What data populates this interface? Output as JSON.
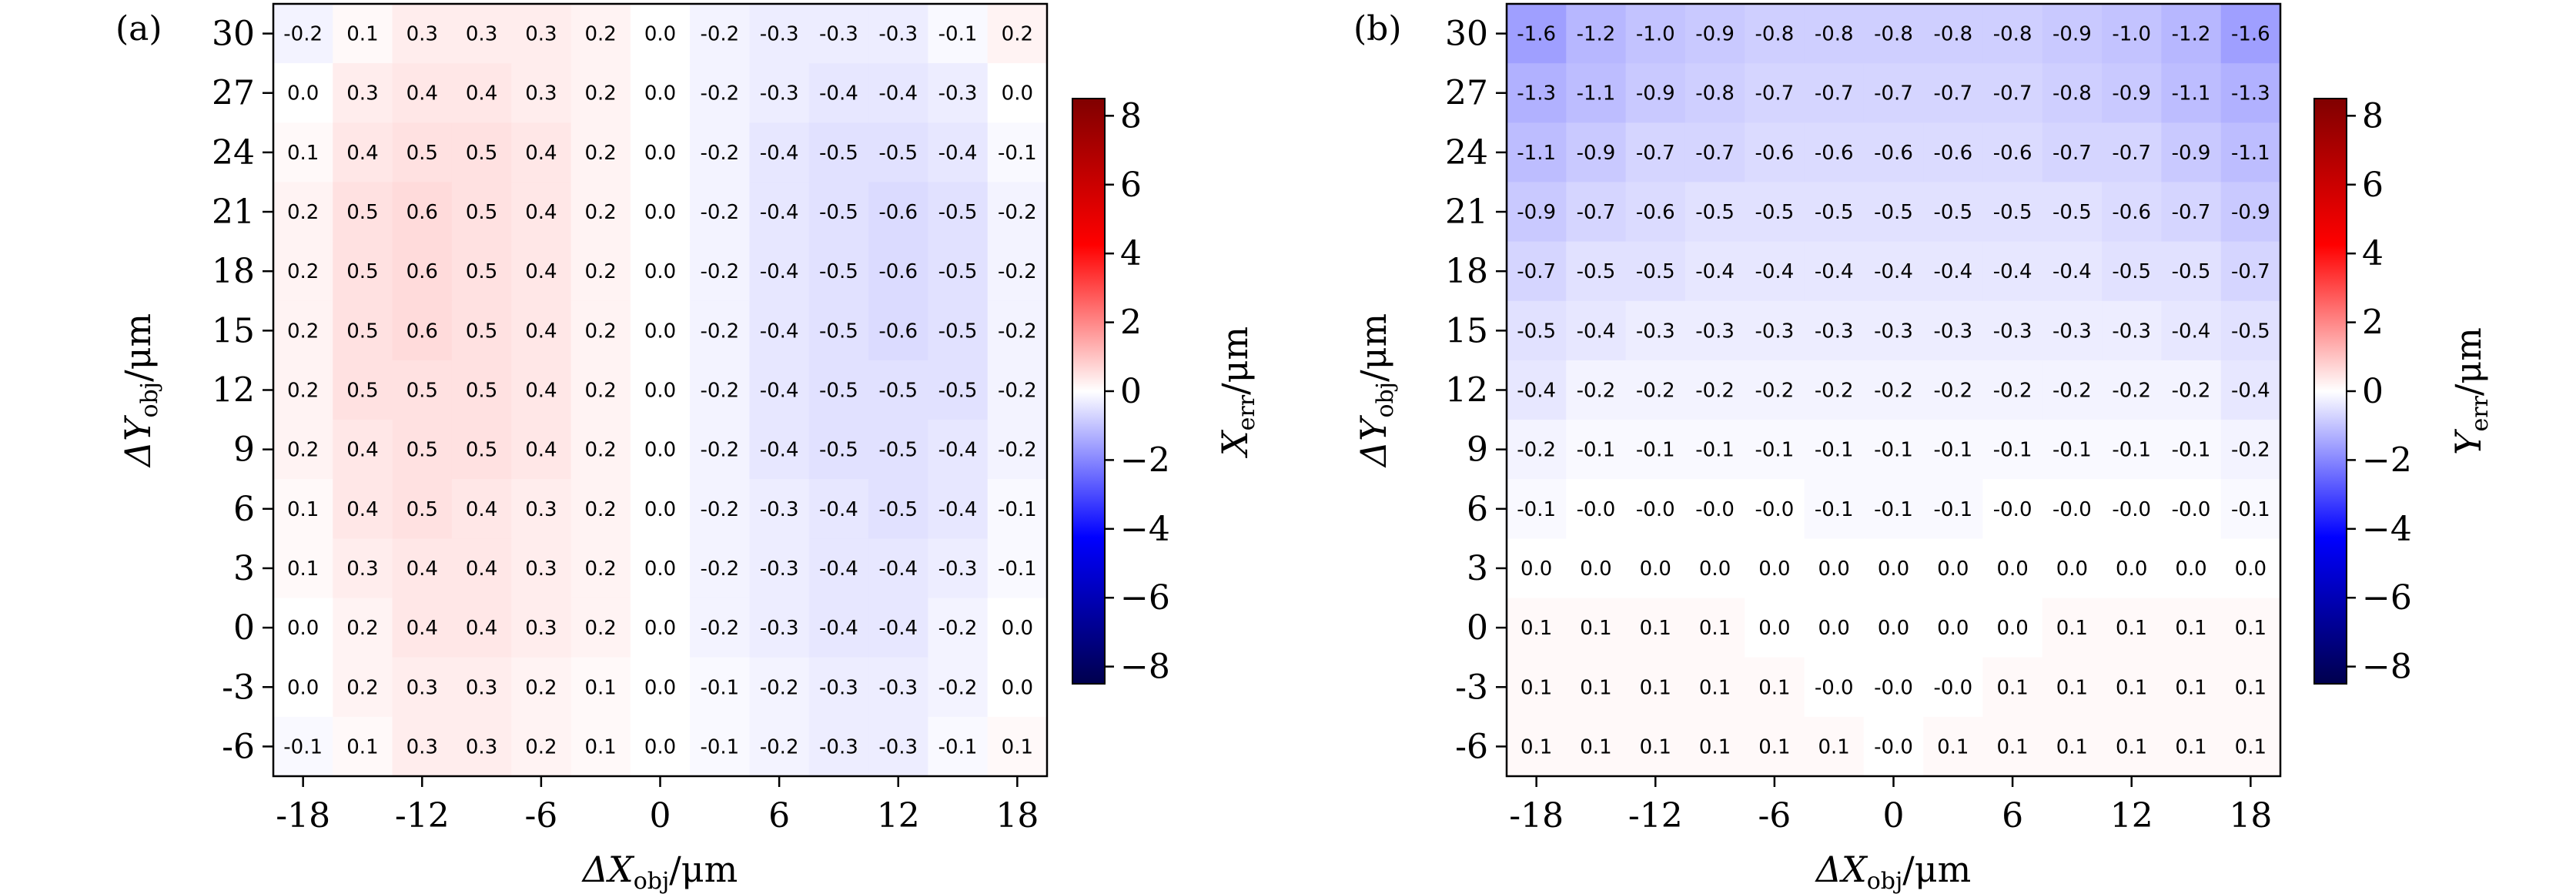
{
  "panels": [
    {
      "label": "(a)",
      "xlabel": "ΔX_obj/μm",
      "ylabel": "ΔY_obj/μm",
      "colorbar_label": "X_err/μm"
    },
    {
      "label": "(b)",
      "xlabel": "ΔX_obj/μm",
      "ylabel": "ΔY_obj/μm",
      "colorbar_label": "Y_err/μm"
    }
  ],
  "chart_data": [
    {
      "type": "heatmap",
      "title": "",
      "xlabel": "ΔX_obj/μm",
      "ylabel": "ΔY_obj/μm",
      "colorbar_label": "X_err/μm",
      "x": [
        -18,
        -15,
        -12,
        -9,
        -6,
        -3,
        0,
        3,
        6,
        9,
        12,
        15,
        18
      ],
      "y": [
        30,
        27,
        24,
        21,
        18,
        15,
        12,
        9,
        6,
        3,
        0,
        -3,
        -6
      ],
      "x_ticks": [
        -18,
        -12,
        -6,
        0,
        6,
        12,
        18
      ],
      "y_ticks": [
        30,
        27,
        24,
        21,
        18,
        15,
        12,
        9,
        6,
        3,
        0,
        -3,
        -6
      ],
      "xlim": [
        -19.5,
        19.5
      ],
      "ylim": [
        -7.5,
        31.5
      ],
      "colorbar_range": [
        -8.5,
        8.5
      ],
      "colorbar_ticks": [
        8,
        6,
        4,
        2,
        0,
        -2,
        -4,
        -6,
        -8
      ],
      "colormap": "seismic",
      "values": [
        [
          "-0.2",
          "0.1",
          "0.3",
          "0.3",
          "0.3",
          "0.2",
          "0.0",
          "-0.2",
          "-0.3",
          "-0.3",
          "-0.3",
          "-0.1",
          "0.2"
        ],
        [
          "0.0",
          "0.3",
          "0.4",
          "0.4",
          "0.3",
          "0.2",
          "0.0",
          "-0.2",
          "-0.3",
          "-0.4",
          "-0.4",
          "-0.3",
          "0.0"
        ],
        [
          "0.1",
          "0.4",
          "0.5",
          "0.5",
          "0.4",
          "0.2",
          "0.0",
          "-0.2",
          "-0.4",
          "-0.5",
          "-0.5",
          "-0.4",
          "-0.1"
        ],
        [
          "0.2",
          "0.5",
          "0.6",
          "0.5",
          "0.4",
          "0.2",
          "0.0",
          "-0.2",
          "-0.4",
          "-0.5",
          "-0.6",
          "-0.5",
          "-0.2"
        ],
        [
          "0.2",
          "0.5",
          "0.6",
          "0.5",
          "0.4",
          "0.2",
          "0.0",
          "-0.2",
          "-0.4",
          "-0.5",
          "-0.6",
          "-0.5",
          "-0.2"
        ],
        [
          "0.2",
          "0.5",
          "0.6",
          "0.5",
          "0.4",
          "0.2",
          "0.0",
          "-0.2",
          "-0.4",
          "-0.5",
          "-0.6",
          "-0.5",
          "-0.2"
        ],
        [
          "0.2",
          "0.5",
          "0.5",
          "0.5",
          "0.4",
          "0.2",
          "0.0",
          "-0.2",
          "-0.4",
          "-0.5",
          "-0.5",
          "-0.5",
          "-0.2"
        ],
        [
          "0.2",
          "0.4",
          "0.5",
          "0.5",
          "0.4",
          "0.2",
          "0.0",
          "-0.2",
          "-0.4",
          "-0.5",
          "-0.5",
          "-0.4",
          "-0.2"
        ],
        [
          "0.1",
          "0.4",
          "0.5",
          "0.4",
          "0.3",
          "0.2",
          "0.0",
          "-0.2",
          "-0.3",
          "-0.4",
          "-0.5",
          "-0.4",
          "-0.1"
        ],
        [
          "0.1",
          "0.3",
          "0.4",
          "0.4",
          "0.3",
          "0.2",
          "0.0",
          "-0.2",
          "-0.3",
          "-0.4",
          "-0.4",
          "-0.3",
          "-0.1"
        ],
        [
          "0.0",
          "0.2",
          "0.4",
          "0.4",
          "0.3",
          "0.2",
          "0.0",
          "-0.2",
          "-0.3",
          "-0.4",
          "-0.4",
          "-0.2",
          "0.0"
        ],
        [
          "0.0",
          "0.2",
          "0.3",
          "0.3",
          "0.2",
          "0.1",
          "0.0",
          "-0.1",
          "-0.2",
          "-0.3",
          "-0.3",
          "-0.2",
          "0.0"
        ],
        [
          "-0.1",
          "0.1",
          "0.3",
          "0.3",
          "0.2",
          "0.1",
          "0.0",
          "-0.1",
          "-0.2",
          "-0.3",
          "-0.3",
          "-0.1",
          "0.1"
        ]
      ]
    },
    {
      "type": "heatmap",
      "title": "",
      "xlabel": "ΔX_obj/μm",
      "ylabel": "ΔY_obj/μm",
      "colorbar_label": "Y_err/μm",
      "x": [
        -18,
        -15,
        -12,
        -9,
        -6,
        -3,
        0,
        3,
        6,
        9,
        12,
        15,
        18
      ],
      "y": [
        30,
        27,
        24,
        21,
        18,
        15,
        12,
        9,
        6,
        3,
        0,
        -3,
        -6
      ],
      "x_ticks": [
        -18,
        -12,
        -6,
        0,
        6,
        12,
        18
      ],
      "y_ticks": [
        30,
        27,
        24,
        21,
        18,
        15,
        12,
        9,
        6,
        3,
        0,
        -3,
        -6
      ],
      "xlim": [
        -19.5,
        19.5
      ],
      "ylim": [
        -7.5,
        31.5
      ],
      "colorbar_range": [
        -8.5,
        8.5
      ],
      "colorbar_ticks": [
        8,
        6,
        4,
        2,
        0,
        -2,
        -4,
        -6,
        -8
      ],
      "colormap": "seismic",
      "values": [
        [
          "-1.6",
          "-1.2",
          "-1.0",
          "-0.9",
          "-0.8",
          "-0.8",
          "-0.8",
          "-0.8",
          "-0.8",
          "-0.9",
          "-1.0",
          "-1.2",
          "-1.6"
        ],
        [
          "-1.3",
          "-1.1",
          "-0.9",
          "-0.8",
          "-0.7",
          "-0.7",
          "-0.7",
          "-0.7",
          "-0.7",
          "-0.8",
          "-0.9",
          "-1.1",
          "-1.3"
        ],
        [
          "-1.1",
          "-0.9",
          "-0.7",
          "-0.7",
          "-0.6",
          "-0.6",
          "-0.6",
          "-0.6",
          "-0.6",
          "-0.7",
          "-0.7",
          "-0.9",
          "-1.1"
        ],
        [
          "-0.9",
          "-0.7",
          "-0.6",
          "-0.5",
          "-0.5",
          "-0.5",
          "-0.5",
          "-0.5",
          "-0.5",
          "-0.5",
          "-0.6",
          "-0.7",
          "-0.9"
        ],
        [
          "-0.7",
          "-0.5",
          "-0.5",
          "-0.4",
          "-0.4",
          "-0.4",
          "-0.4",
          "-0.4",
          "-0.4",
          "-0.4",
          "-0.5",
          "-0.5",
          "-0.7"
        ],
        [
          "-0.5",
          "-0.4",
          "-0.3",
          "-0.3",
          "-0.3",
          "-0.3",
          "-0.3",
          "-0.3",
          "-0.3",
          "-0.3",
          "-0.3",
          "-0.4",
          "-0.5"
        ],
        [
          "-0.4",
          "-0.2",
          "-0.2",
          "-0.2",
          "-0.2",
          "-0.2",
          "-0.2",
          "-0.2",
          "-0.2",
          "-0.2",
          "-0.2",
          "-0.2",
          "-0.4"
        ],
        [
          "-0.2",
          "-0.1",
          "-0.1",
          "-0.1",
          "-0.1",
          "-0.1",
          "-0.1",
          "-0.1",
          "-0.1",
          "-0.1",
          "-0.1",
          "-0.1",
          "-0.2"
        ],
        [
          "-0.1",
          "-0.0",
          "-0.0",
          "-0.0",
          "-0.0",
          "-0.1",
          "-0.1",
          "-0.1",
          "-0.0",
          "-0.0",
          "-0.0",
          "-0.0",
          "-0.1"
        ],
        [
          "0.0",
          "0.0",
          "0.0",
          "0.0",
          "0.0",
          "0.0",
          "0.0",
          "0.0",
          "0.0",
          "0.0",
          "0.0",
          "0.0",
          "0.0"
        ],
        [
          "0.1",
          "0.1",
          "0.1",
          "0.1",
          "0.0",
          "0.0",
          "0.0",
          "0.0",
          "0.0",
          "0.1",
          "0.1",
          "0.1",
          "0.1"
        ],
        [
          "0.1",
          "0.1",
          "0.1",
          "0.1",
          "0.1",
          "-0.0",
          "-0.0",
          "-0.0",
          "0.1",
          "0.1",
          "0.1",
          "0.1",
          "0.1"
        ],
        [
          "0.1",
          "0.1",
          "0.1",
          "0.1",
          "0.1",
          "0.1",
          "-0.0",
          "0.1",
          "0.1",
          "0.1",
          "0.1",
          "0.1",
          "0.1"
        ]
      ]
    }
  ]
}
